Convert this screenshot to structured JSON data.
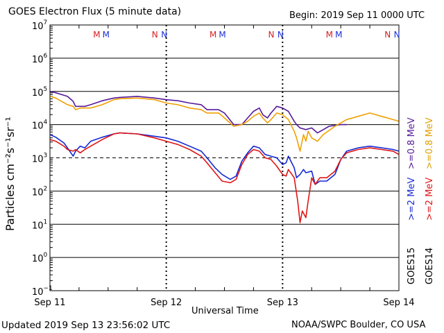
{
  "header": {
    "title": "GOES Electron Flux (5 minute data)",
    "begin": "Begin: 2019 Sep 11 0000 UTC"
  },
  "footer": {
    "updated": "Updated 2019 Sep 13 23:56:02 UTC",
    "credit": "NOAA/SWPC Boulder, CO USA"
  },
  "legend": {
    "g15_label": "GOES15",
    "g14_label": "GOES14",
    "g15_08": ">=0.8 MeV",
    "g14_08": ">=0.8 MeV",
    "g15_2": ">=2 MeV",
    "g14_2": ">=2 MeV"
  },
  "colors": {
    "g15_08": "#55199a",
    "g14_08": "#f0a000",
    "g15_2": "#1428d2",
    "g14_2": "#e01414",
    "m_marker": "#d62020",
    "n_marker": "#1a2ed8"
  },
  "markers": [
    {
      "label": "M",
      "x": 0.42,
      "color": "m_marker"
    },
    {
      "label": "M",
      "x": 0.5,
      "color": "n_marker"
    },
    {
      "label": "N",
      "x": 0.92,
      "color": "m_marker"
    },
    {
      "label": "N",
      "x": 1.0,
      "color": "n_marker"
    },
    {
      "label": "M",
      "x": 1.42,
      "color": "m_marker"
    },
    {
      "label": "M",
      "x": 1.5,
      "color": "n_marker"
    },
    {
      "label": "N",
      "x": 1.92,
      "color": "m_marker"
    },
    {
      "label": "N",
      "x": 2.0,
      "color": "n_marker"
    },
    {
      "label": "M",
      "x": 2.42,
      "color": "m_marker"
    },
    {
      "label": "M",
      "x": 2.5,
      "color": "n_marker"
    },
    {
      "label": "N",
      "x": 2.92,
      "color": "m_marker"
    },
    {
      "label": "N",
      "x": 3.0,
      "color": "n_marker"
    }
  ],
  "chart_data": {
    "type": "line",
    "xlabel": "Universal Time",
    "ylabel": "Particles cm⁻²s⁻¹sr⁻¹",
    "x_unit": "days since 2019 Sep 11 00:00 UTC",
    "xlim": [
      0,
      3
    ],
    "ylim_exp": [
      -1,
      7
    ],
    "y_scale": "log10",
    "x_ticks": [
      {
        "x": 0,
        "label": "Sep 11"
      },
      {
        "x": 1,
        "label": "Sep 12"
      },
      {
        "x": 2,
        "label": "Sep 13"
      },
      {
        "x": 3,
        "label": "Sep 14"
      }
    ],
    "y_ticks": [
      {
        "exp": 7,
        "label": "7"
      },
      {
        "exp": 6,
        "label": "6"
      },
      {
        "exp": 5,
        "label": "5"
      },
      {
        "exp": 4,
        "label": "4"
      },
      {
        "exp": 3,
        "label": "3"
      },
      {
        "exp": 2,
        "label": "2"
      },
      {
        "exp": 1,
        "label": "1"
      },
      {
        "exp": 0,
        "label": "0"
      },
      {
        "exp": -1,
        "label": "−1"
      }
    ],
    "threshold_exp": 3,
    "series": [
      {
        "name": "GOES15 >=0.8 MeV",
        "color": "g15_08",
        "points": [
          [
            0,
            5.0
          ],
          [
            0.05,
            4.96
          ],
          [
            0.15,
            4.85
          ],
          [
            0.2,
            4.7
          ],
          [
            0.22,
            4.55
          ],
          [
            0.26,
            4.55
          ],
          [
            0.3,
            4.55
          ],
          [
            0.35,
            4.6
          ],
          [
            0.45,
            4.72
          ],
          [
            0.55,
            4.8
          ],
          [
            0.6,
            4.82
          ],
          [
            0.75,
            4.85
          ],
          [
            0.9,
            4.8
          ],
          [
            1.0,
            4.75
          ],
          [
            1.1,
            4.72
          ],
          [
            1.2,
            4.65
          ],
          [
            1.3,
            4.6
          ],
          [
            1.35,
            4.45
          ],
          [
            1.45,
            4.45
          ],
          [
            1.5,
            4.35
          ],
          [
            1.58,
            4.0
          ],
          [
            1.65,
            4.0
          ],
          [
            1.7,
            4.2
          ],
          [
            1.75,
            4.4
          ],
          [
            1.8,
            4.5
          ],
          [
            1.83,
            4.3
          ],
          [
            1.87,
            4.2
          ],
          [
            1.9,
            4.35
          ],
          [
            1.95,
            4.55
          ],
          [
            2.0,
            4.5
          ],
          [
            2.05,
            4.4
          ],
          [
            2.1,
            4.1
          ],
          [
            2.12,
            4.0
          ],
          [
            2.15,
            3.9
          ],
          [
            2.2,
            3.85
          ],
          [
            2.25,
            3.9
          ],
          [
            2.3,
            3.75
          ],
          [
            2.35,
            3.85
          ],
          [
            2.4,
            3.95
          ],
          [
            2.5,
            4.0
          ],
          [
            2.55,
            4.0
          ]
        ]
      },
      {
        "name": "GOES14 >=0.8 MeV",
        "color": "g14_08",
        "points": [
          [
            0,
            4.85
          ],
          [
            0.05,
            4.8
          ],
          [
            0.15,
            4.6
          ],
          [
            0.2,
            4.55
          ],
          [
            0.22,
            4.45
          ],
          [
            0.26,
            4.5
          ],
          [
            0.3,
            4.5
          ],
          [
            0.35,
            4.5
          ],
          [
            0.45,
            4.6
          ],
          [
            0.55,
            4.75
          ],
          [
            0.6,
            4.78
          ],
          [
            0.75,
            4.8
          ],
          [
            0.9,
            4.75
          ],
          [
            1.0,
            4.65
          ],
          [
            1.1,
            4.6
          ],
          [
            1.2,
            4.5
          ],
          [
            1.3,
            4.45
          ],
          [
            1.35,
            4.35
          ],
          [
            1.45,
            4.35
          ],
          [
            1.5,
            4.2
          ],
          [
            1.58,
            3.95
          ],
          [
            1.65,
            4.0
          ],
          [
            1.7,
            4.1
          ],
          [
            1.75,
            4.25
          ],
          [
            1.8,
            4.35
          ],
          [
            1.83,
            4.2
          ],
          [
            1.87,
            4.05
          ],
          [
            1.9,
            4.15
          ],
          [
            1.95,
            4.35
          ],
          [
            2.0,
            4.3
          ],
          [
            2.05,
            4.15
          ],
          [
            2.1,
            3.8
          ],
          [
            2.12,
            3.6
          ],
          [
            2.15,
            3.2
          ],
          [
            2.18,
            3.7
          ],
          [
            2.2,
            3.5
          ],
          [
            2.22,
            3.8
          ],
          [
            2.25,
            3.6
          ],
          [
            2.3,
            3.5
          ],
          [
            2.35,
            3.7
          ],
          [
            2.45,
            3.95
          ],
          [
            2.55,
            4.15
          ],
          [
            2.65,
            4.25
          ],
          [
            2.75,
            4.35
          ],
          [
            2.85,
            4.25
          ],
          [
            2.95,
            4.15
          ],
          [
            3.0,
            4.1
          ]
        ]
      },
      {
        "name": "GOES15 >=2 MeV",
        "color": "g15_2",
        "points": [
          [
            0,
            3.7
          ],
          [
            0.05,
            3.62
          ],
          [
            0.12,
            3.45
          ],
          [
            0.15,
            3.3
          ],
          [
            0.2,
            3.05
          ],
          [
            0.22,
            3.2
          ],
          [
            0.26,
            3.35
          ],
          [
            0.3,
            3.3
          ],
          [
            0.35,
            3.5
          ],
          [
            0.45,
            3.62
          ],
          [
            0.55,
            3.72
          ],
          [
            0.6,
            3.75
          ],
          [
            0.75,
            3.72
          ],
          [
            0.9,
            3.65
          ],
          [
            1.0,
            3.6
          ],
          [
            1.1,
            3.5
          ],
          [
            1.2,
            3.35
          ],
          [
            1.3,
            3.2
          ],
          [
            1.35,
            3.0
          ],
          [
            1.42,
            2.7
          ],
          [
            1.48,
            2.5
          ],
          [
            1.55,
            2.35
          ],
          [
            1.6,
            2.45
          ],
          [
            1.65,
            2.9
          ],
          [
            1.7,
            3.15
          ],
          [
            1.75,
            3.35
          ],
          [
            1.8,
            3.3
          ],
          [
            1.85,
            3.1
          ],
          [
            1.9,
            3.05
          ],
          [
            1.95,
            3.0
          ],
          [
            2.0,
            2.8
          ],
          [
            2.03,
            2.85
          ],
          [
            2.05,
            3.05
          ],
          [
            2.1,
            2.7
          ],
          [
            2.12,
            2.4
          ],
          [
            2.15,
            2.5
          ],
          [
            2.18,
            2.65
          ],
          [
            2.2,
            2.55
          ],
          [
            2.25,
            2.6
          ],
          [
            2.28,
            2.2
          ],
          [
            2.32,
            2.3
          ],
          [
            2.38,
            2.3
          ],
          [
            2.45,
            2.5
          ],
          [
            2.5,
            2.95
          ],
          [
            2.55,
            3.2
          ],
          [
            2.65,
            3.3
          ],
          [
            2.75,
            3.35
          ],
          [
            2.85,
            3.3
          ],
          [
            2.95,
            3.25
          ],
          [
            3.0,
            3.2
          ]
        ]
      },
      {
        "name": "GOES14 >=2 MeV",
        "color": "g14_2",
        "points": [
          [
            0,
            3.55
          ],
          [
            0.05,
            3.5
          ],
          [
            0.12,
            3.35
          ],
          [
            0.15,
            3.25
          ],
          [
            0.2,
            3.2
          ],
          [
            0.22,
            3.25
          ],
          [
            0.26,
            3.15
          ],
          [
            0.3,
            3.25
          ],
          [
            0.35,
            3.35
          ],
          [
            0.45,
            3.55
          ],
          [
            0.55,
            3.72
          ],
          [
            0.6,
            3.75
          ],
          [
            0.75,
            3.72
          ],
          [
            0.9,
            3.6
          ],
          [
            1.0,
            3.5
          ],
          [
            1.1,
            3.4
          ],
          [
            1.2,
            3.25
          ],
          [
            1.3,
            3.05
          ],
          [
            1.35,
            2.85
          ],
          [
            1.42,
            2.55
          ],
          [
            1.48,
            2.3
          ],
          [
            1.55,
            2.25
          ],
          [
            1.6,
            2.35
          ],
          [
            1.65,
            2.8
          ],
          [
            1.7,
            3.1
          ],
          [
            1.75,
            3.25
          ],
          [
            1.8,
            3.2
          ],
          [
            1.85,
            3.0
          ],
          [
            1.9,
            2.95
          ],
          [
            1.95,
            2.75
          ],
          [
            2.0,
            2.5
          ],
          [
            2.03,
            2.45
          ],
          [
            2.05,
            2.65
          ],
          [
            2.1,
            2.4
          ],
          [
            2.13,
            1.7
          ],
          [
            2.15,
            1.05
          ],
          [
            2.17,
            1.4
          ],
          [
            2.2,
            1.2
          ],
          [
            2.22,
            1.7
          ],
          [
            2.25,
            2.4
          ],
          [
            2.28,
            2.2
          ],
          [
            2.32,
            2.4
          ],
          [
            2.38,
            2.4
          ],
          [
            2.45,
            2.6
          ],
          [
            2.5,
            2.95
          ],
          [
            2.55,
            3.15
          ],
          [
            2.65,
            3.25
          ],
          [
            2.75,
            3.3
          ],
          [
            2.85,
            3.25
          ],
          [
            2.95,
            3.2
          ],
          [
            3.0,
            3.1
          ]
        ]
      }
    ]
  }
}
